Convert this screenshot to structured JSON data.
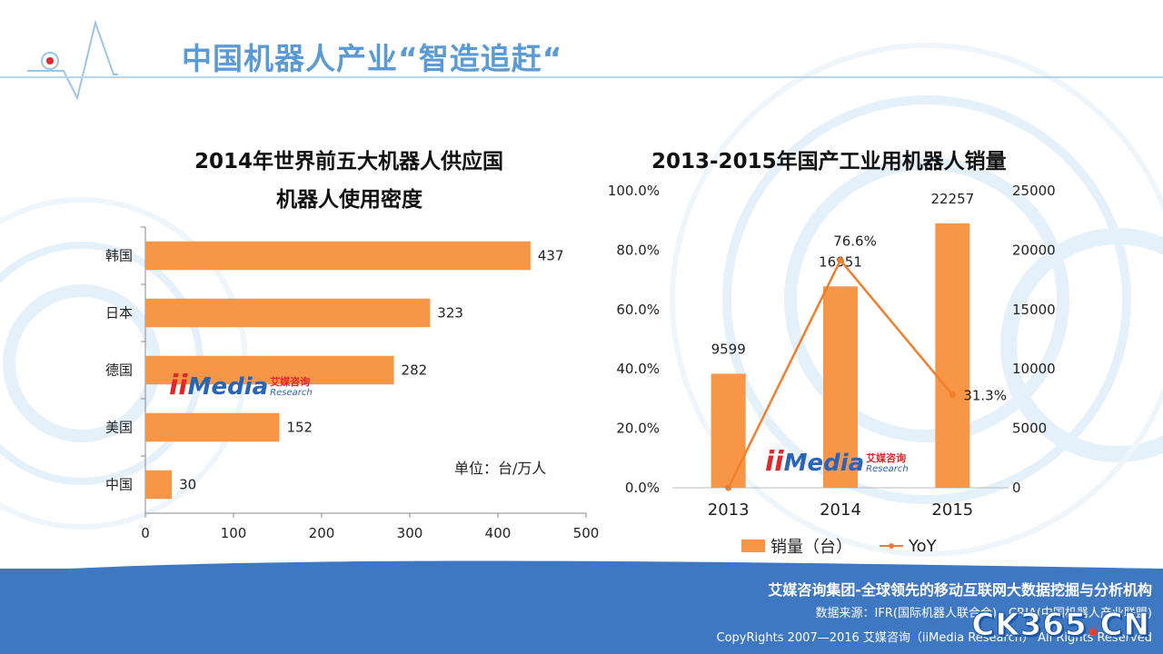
{
  "header": {
    "title": "中国机器人产业“智造追赶“"
  },
  "colors": {
    "bar": "#f79646",
    "line": "#f07f2d",
    "title_blue": "#5b9bd5",
    "footer_blue": "#3f78c2"
  },
  "brand_logo": {
    "ii": "ii",
    "media": "Media",
    "cn": "艾媒咨询",
    "en": "Research"
  },
  "left_chart": {
    "title_line1": "2014年世界前五大机器人供应国",
    "title_line2": "机器人使用密度",
    "unit_note": "单位：台/万人"
  },
  "right_chart": {
    "title": "2013-2015年国产工业用机器人销量",
    "legend_bar": "销量（台）",
    "legend_line": "YoY"
  },
  "chart_data": [
    {
      "type": "bar",
      "orientation": "horizontal",
      "title": "2014年世界前五大机器人供应国机器人使用密度",
      "categories": [
        "韩国",
        "日本",
        "德国",
        "美国",
        "中国"
      ],
      "values": [
        437,
        323,
        282,
        152,
        30
      ],
      "xlim": [
        0,
        500
      ],
      "xticks": [
        0,
        100,
        200,
        300,
        400,
        500
      ],
      "grid": false,
      "data_labels": true
    },
    {
      "type": "bar",
      "title": "2013-2015年国产工业用机器人销量",
      "categories": [
        "2013",
        "2014",
        "2015"
      ],
      "series": [
        {
          "name": "销量（台）",
          "type": "bar",
          "axis": "right",
          "values": [
            9599,
            16951,
            22257
          ],
          "labels": [
            "9599",
            "16951",
            "22257"
          ]
        },
        {
          "name": "YoY",
          "type": "line",
          "axis": "left",
          "values": [
            0.0,
            76.6,
            31.3
          ],
          "labels": [
            "",
            "76.6%",
            "31.3%"
          ]
        }
      ],
      "left_axis": {
        "ylim": [
          0,
          100
        ],
        "ticks": [
          "0.0%",
          "20.0%",
          "40.0%",
          "60.0%",
          "80.0%",
          "100.0%"
        ]
      },
      "right_axis": {
        "ylim": [
          0,
          25000
        ],
        "ticks": [
          "0",
          "5000",
          "10000",
          "15000",
          "20000",
          "25000"
        ]
      },
      "legend_position": "bottom",
      "grid": false
    }
  ],
  "footer": {
    "line1": "艾媒咨询集团-全球领先的移动互联网大数据挖掘与分析机构",
    "line2": "数据来源：IFR(国际机器人联合会)，CRIA(中国机器人产业联盟)",
    "line3": "CopyRights  2007—2016  艾媒咨询（iiMedia Research）  All Rights Reserved",
    "watermark_main": "CK365",
    "watermark_dot": ".",
    "watermark_tail": "CN"
  }
}
